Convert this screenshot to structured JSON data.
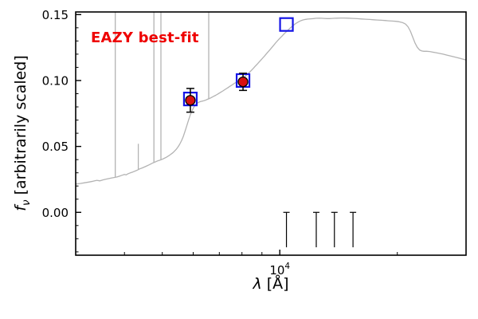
{
  "annotation": {
    "text": "EAZY best-fit",
    "color": "#ee0000"
  },
  "axes": {
    "ylabel": {
      "f": "f",
      "sub": "ν",
      "rest": " [arbitrarily scaled]"
    },
    "xlabel": {
      "lambda": "λ",
      "rest": " [Å]"
    }
  },
  "chart_data": {
    "type": "line",
    "title": "",
    "xlabel": "λ [Å]",
    "ylabel": "f_ν [arbitrarily scaled]",
    "xscale": "log",
    "xlim": [
      3000,
      30000
    ],
    "ylim": [
      -0.0325,
      0.152
    ],
    "grid": false,
    "yminor_step": 0.01,
    "yticks": [
      {
        "value": 0.0,
        "label": "0.00"
      },
      {
        "value": 0.05,
        "label": "0.05"
      },
      {
        "value": 0.1,
        "label": "0.10"
      },
      {
        "value": 0.15,
        "label": "0.15"
      }
    ],
    "xticks_major": [
      {
        "value": 10000,
        "label_base": "10",
        "label_exp": "4"
      }
    ],
    "xticks_minor": [
      4000,
      5000,
      6000,
      7000,
      8000,
      9000,
      20000
    ],
    "series": [
      {
        "name": "EAZY best-fit template spectrum",
        "type": "line",
        "color": "#b3b3b3",
        "points": [
          [
            3000,
            0.0215
          ],
          [
            3080,
            0.0219
          ],
          [
            3160,
            0.0224
          ],
          [
            3240,
            0.023
          ],
          [
            3320,
            0.0236
          ],
          [
            3400,
            0.0243
          ],
          [
            3460,
            0.0239
          ],
          [
            3520,
            0.0246
          ],
          [
            3580,
            0.0251
          ],
          [
            3640,
            0.0256
          ],
          [
            3700,
            0.026
          ],
          [
            3760,
            0.0264
          ],
          [
            3820,
            0.0268
          ],
          [
            3880,
            0.0274
          ],
          [
            3940,
            0.0281
          ],
          [
            4000,
            0.0288
          ],
          [
            4040,
            0.0284
          ],
          [
            4080,
            0.0292
          ],
          [
            4140,
            0.0299
          ],
          [
            4200,
            0.0306
          ],
          [
            4260,
            0.0313
          ],
          [
            4320,
            0.0321
          ],
          [
            4380,
            0.033
          ],
          [
            4440,
            0.0337
          ],
          [
            4500,
            0.0344
          ],
          [
            4560,
            0.0352
          ],
          [
            4620,
            0.036
          ],
          [
            4680,
            0.0368
          ],
          [
            4740,
            0.0376
          ],
          [
            4800,
            0.0383
          ],
          [
            4860,
            0.039
          ],
          [
            4920,
            0.0395
          ],
          [
            5000,
            0.0403
          ],
          [
            5060,
            0.041
          ],
          [
            5120,
            0.0418
          ],
          [
            5180,
            0.0427
          ],
          [
            5240,
            0.0437
          ],
          [
            5300,
            0.0448
          ],
          [
            5360,
            0.0461
          ],
          [
            5420,
            0.0476
          ],
          [
            5480,
            0.0494
          ],
          [
            5540,
            0.0516
          ],
          [
            5600,
            0.0543
          ],
          [
            5660,
            0.0576
          ],
          [
            5720,
            0.0616
          ],
          [
            5780,
            0.066
          ],
          [
            5840,
            0.0702
          ],
          [
            5900,
            0.074
          ],
          [
            5960,
            0.0772
          ],
          [
            6020,
            0.0797
          ],
          [
            6080,
            0.0815
          ],
          [
            6140,
            0.0827
          ],
          [
            6200,
            0.0835
          ],
          [
            6260,
            0.084
          ],
          [
            6320,
            0.0843
          ],
          [
            6380,
            0.0846
          ],
          [
            6440,
            0.085
          ],
          [
            6500,
            0.0855
          ],
          [
            6576,
            0.0861
          ],
          [
            6650,
            0.0868
          ],
          [
            6750,
            0.0878
          ],
          [
            6850,
            0.0888
          ],
          [
            6950,
            0.0899
          ],
          [
            7050,
            0.091
          ],
          [
            7150,
            0.0921
          ],
          [
            7250,
            0.0933
          ],
          [
            7350,
            0.0944
          ],
          [
            7450,
            0.0956
          ],
          [
            7550,
            0.0967
          ],
          [
            7650,
            0.0978
          ],
          [
            7750,
            0.0989
          ],
          [
            7850,
            0.0999
          ],
          [
            7950,
            0.1009
          ],
          [
            8050,
            0.102
          ],
          [
            8150,
            0.1032
          ],
          [
            8250,
            0.1046
          ],
          [
            8350,
            0.106
          ],
          [
            8450,
            0.1076
          ],
          [
            8550,
            0.1092
          ],
          [
            8650,
            0.1108
          ],
          [
            8750,
            0.1124
          ],
          [
            8850,
            0.114
          ],
          [
            8950,
            0.1156
          ],
          [
            9050,
            0.1172
          ],
          [
            9150,
            0.1188
          ],
          [
            9250,
            0.1204
          ],
          [
            9350,
            0.122
          ],
          [
            9450,
            0.1236
          ],
          [
            9550,
            0.1252
          ],
          [
            9650,
            0.1268
          ],
          [
            9750,
            0.1284
          ],
          [
            9850,
            0.1299
          ],
          [
            9950,
            0.1313
          ],
          [
            10050,
            0.1327
          ],
          [
            10150,
            0.134
          ],
          [
            10250,
            0.1353
          ],
          [
            10350,
            0.1365
          ],
          [
            10450,
            0.1377
          ],
          [
            10550,
            0.1389
          ],
          [
            10650,
            0.14
          ],
          [
            10750,
            0.141
          ],
          [
            10850,
            0.142
          ],
          [
            10950,
            0.1429
          ],
          [
            11050,
            0.1437
          ],
          [
            11150,
            0.1444
          ],
          [
            11250,
            0.145
          ],
          [
            11350,
            0.1455
          ],
          [
            11450,
            0.1459
          ],
          [
            11550,
            0.1462
          ],
          [
            11650,
            0.1464
          ],
          [
            11800,
            0.1466
          ],
          [
            12000,
            0.1468
          ],
          [
            12200,
            0.147
          ],
          [
            12400,
            0.1472
          ],
          [
            12600,
            0.1473
          ],
          [
            12800,
            0.1472
          ],
          [
            13000,
            0.1471
          ],
          [
            13200,
            0.147
          ],
          [
            13400,
            0.147
          ],
          [
            13600,
            0.1471
          ],
          [
            13800,
            0.1472
          ],
          [
            14000,
            0.1473
          ],
          [
            14300,
            0.1474
          ],
          [
            14600,
            0.1474
          ],
          [
            15000,
            0.1473
          ],
          [
            15400,
            0.1471
          ],
          [
            15800,
            0.1469
          ],
          [
            16200,
            0.1467
          ],
          [
            16600,
            0.1465
          ],
          [
            17000,
            0.1463
          ],
          [
            17400,
            0.1461
          ],
          [
            17800,
            0.1459
          ],
          [
            18200,
            0.1457
          ],
          [
            18600,
            0.1455
          ],
          [
            19000,
            0.1453
          ],
          [
            19400,
            0.1451
          ],
          [
            19800,
            0.1449
          ],
          [
            20200,
            0.1446
          ],
          [
            20600,
            0.144
          ],
          [
            21000,
            0.1428
          ],
          [
            21300,
            0.1408
          ],
          [
            21600,
            0.1375
          ],
          [
            21900,
            0.133
          ],
          [
            22200,
            0.1285
          ],
          [
            22500,
            0.1252
          ],
          [
            22800,
            0.1232
          ],
          [
            23100,
            0.1224
          ],
          [
            23400,
            0.1222
          ],
          [
            23800,
            0.1222
          ],
          [
            24200,
            0.122
          ],
          [
            24600,
            0.1216
          ],
          [
            25000,
            0.1212
          ],
          [
            25600,
            0.1206
          ],
          [
            26200,
            0.12
          ],
          [
            26800,
            0.1193
          ],
          [
            27400,
            0.1186
          ],
          [
            28000,
            0.1179
          ],
          [
            28800,
            0.117
          ],
          [
            29500,
            0.1162
          ],
          [
            30000,
            0.1156
          ]
        ]
      }
    ],
    "emission_lines": [
      {
        "lambda": 3790,
        "base": 0.0265,
        "peak": 0.152
      },
      {
        "lambda": 4340,
        "base": 0.0324,
        "peak": 0.052
      },
      {
        "lambda": 4760,
        "base": 0.0379,
        "peak": 0.152
      },
      {
        "lambda": 4960,
        "base": 0.0397,
        "peak": 0.152
      },
      {
        "lambda": 6576,
        "base": 0.0861,
        "peak": 0.152
      }
    ],
    "observed_photometry": {
      "marker": "circle",
      "color": "#d81010",
      "points": [
        {
          "lambda": 5900,
          "flux": 0.085,
          "err": 0.009
        },
        {
          "lambda": 8050,
          "flux": 0.099,
          "err": 0.0065
        }
      ]
    },
    "model_photometry": {
      "marker": "open-square",
      "color": "#1515e6",
      "points": [
        {
          "lambda": 5900,
          "flux": 0.086
        },
        {
          "lambda": 8050,
          "flux": 0.1
        },
        {
          "lambda": 10400,
          "flux": 0.1425
        }
      ]
    },
    "nondetections": {
      "color": "#000000",
      "flux": 0.0,
      "bar_down": 0.0265,
      "lambdas": [
        10400,
        12400,
        13800,
        15400
      ]
    }
  }
}
